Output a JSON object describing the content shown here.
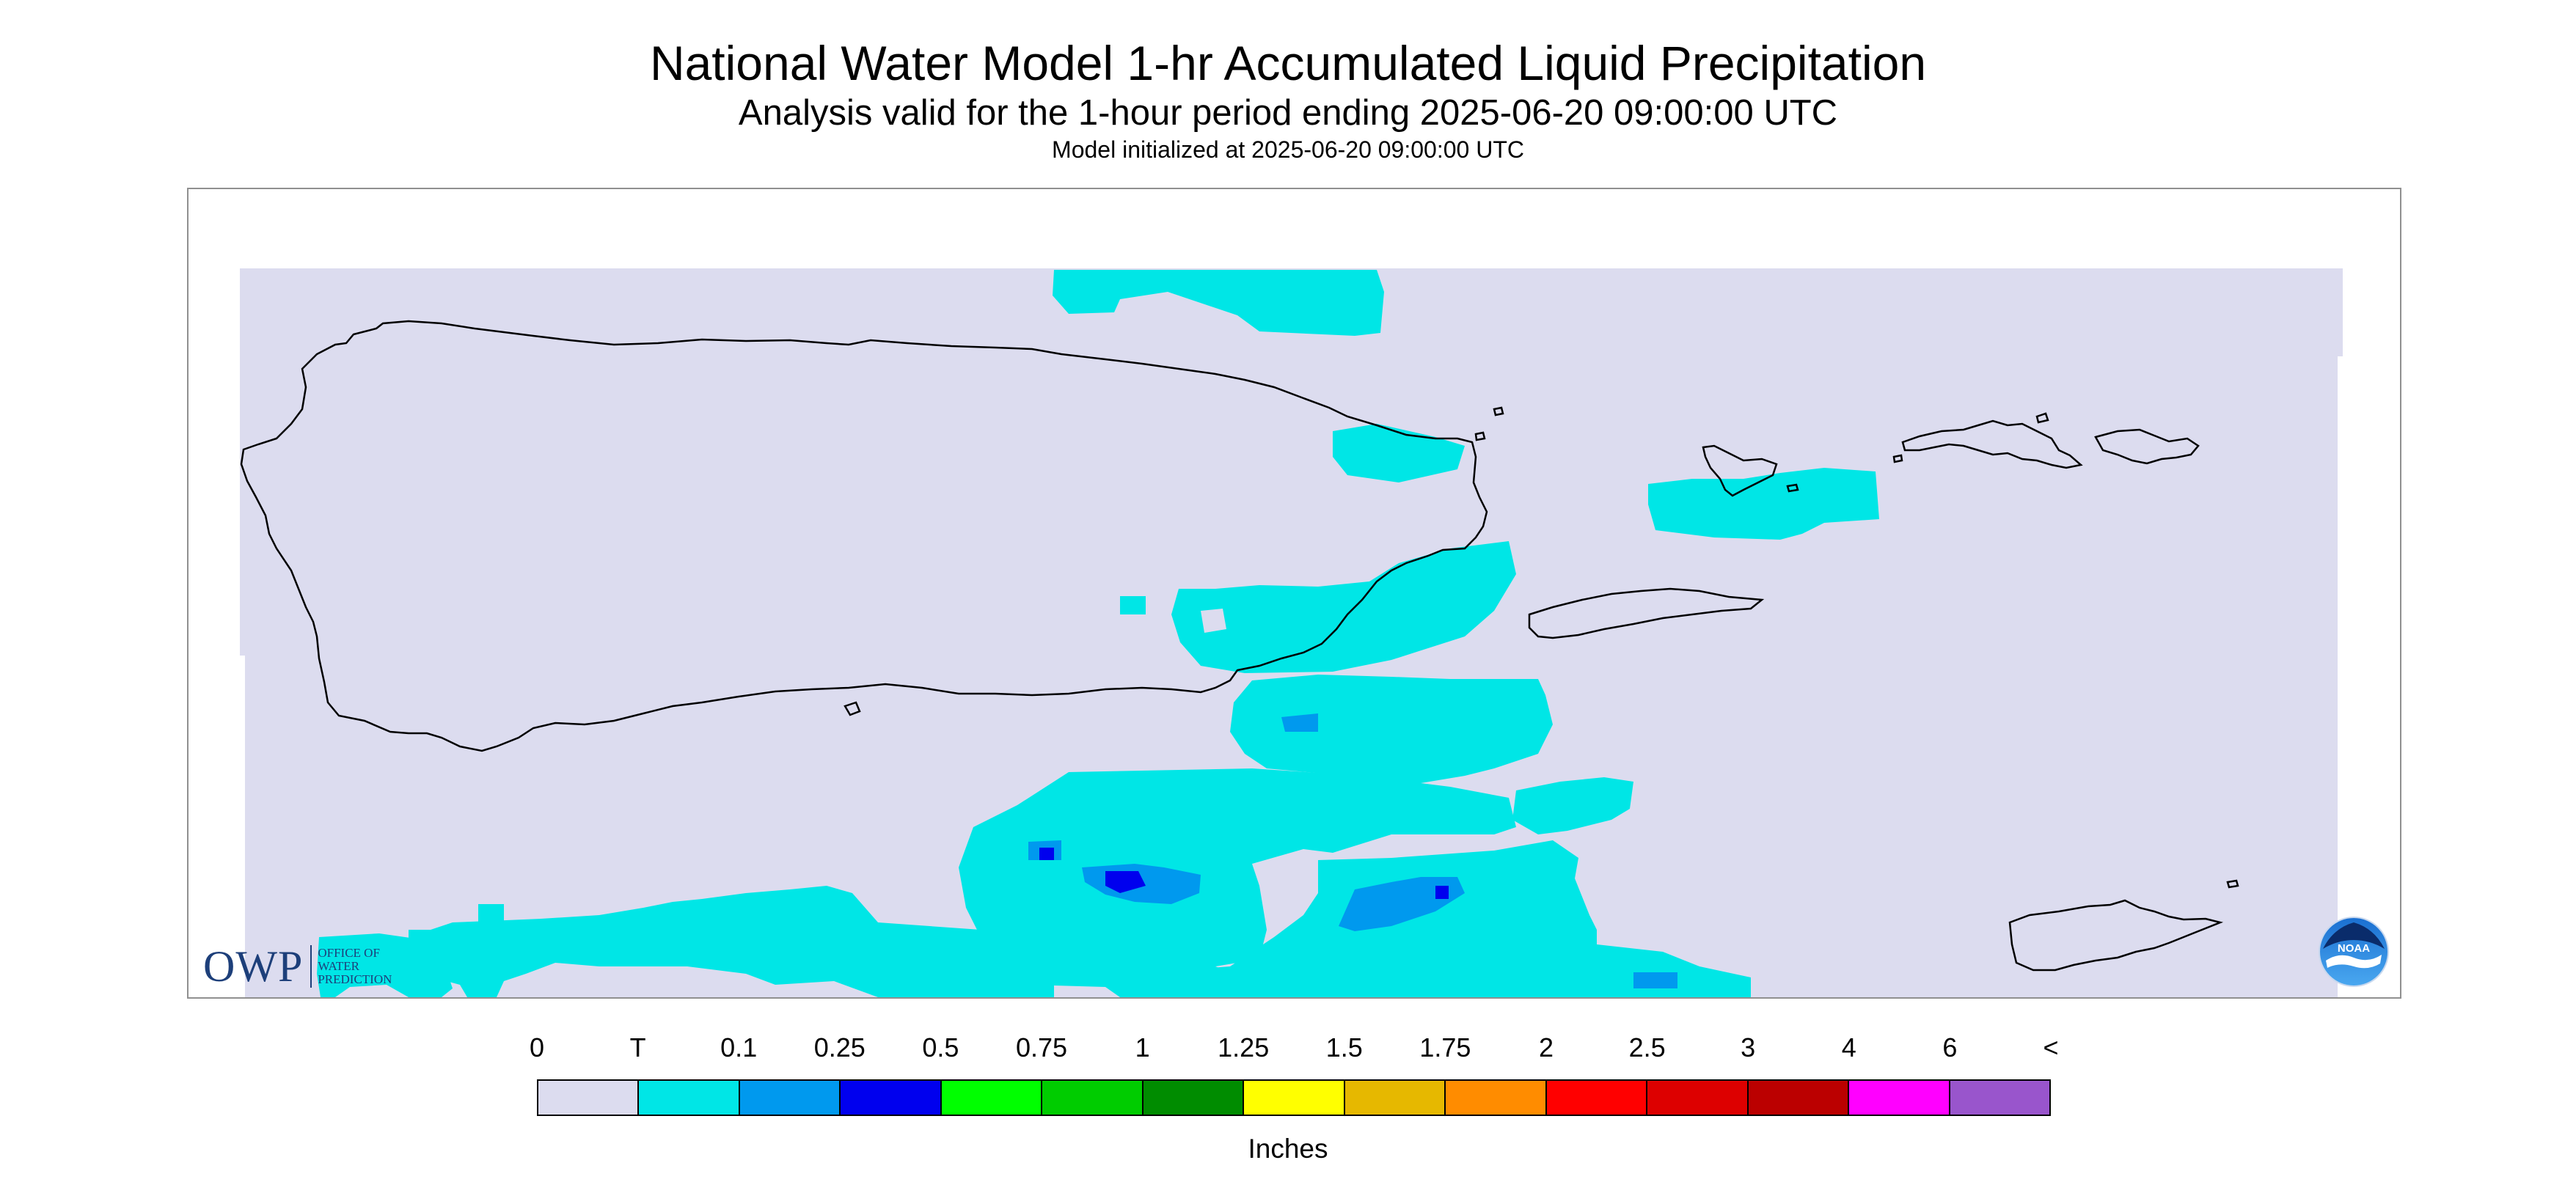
{
  "header": {
    "title": "National Water Model 1-hr Accumulated Liquid Precipitation",
    "subtitle": "Analysis valid for the 1-hour period ending 2025-06-20 09:00:00 UTC",
    "init_line": "Model initialized at 2025-06-20 09:00:00 UTC"
  },
  "map": {
    "background_color": "#dcdcef",
    "coastline_color": "#000000",
    "region": "Puerto Rico and U.S. Virgin Islands"
  },
  "logos": {
    "owp": {
      "mark": "OWP",
      "lines": [
        "OFFICE OF",
        "WATER",
        "PREDICTION"
      ]
    },
    "noaa": {
      "text": "NOAA",
      "icon": "noaa-logo-icon"
    }
  },
  "legend": {
    "labels": [
      "0",
      "T",
      "0.1",
      "0.25",
      "0.5",
      "0.75",
      "1",
      "1.25",
      "1.5",
      "1.75",
      "2",
      "2.5",
      "3",
      "4",
      "6",
      "<"
    ],
    "colors": [
      "#dcdcef",
      "#00e6e6",
      "#0099ee",
      "#0000ee",
      "#00ff00",
      "#00cc00",
      "#008c00",
      "#ffff00",
      "#e6b800",
      "#ff8c00",
      "#ff0000",
      "#dd0000",
      "#bb0000",
      "#ff00ff",
      "#9955cc"
    ],
    "unit": "Inches"
  }
}
